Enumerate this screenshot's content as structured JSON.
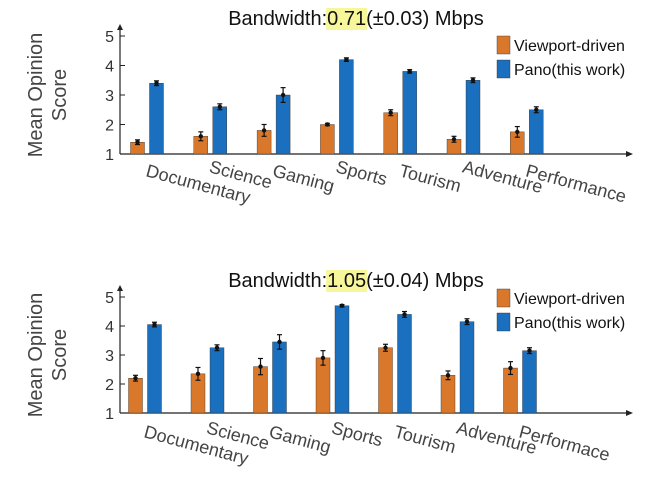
{
  "colors": {
    "viewport": "#d9772b",
    "pano": "#1a6fbf",
    "highlight": "#f7f69a",
    "axis": "#222222",
    "errorbar": "#111111"
  },
  "chart_data": [
    {
      "type": "bar",
      "title_prefix": "Bandwidth:",
      "title_highlight": "0.71",
      "title_suffix": "(±0.03) Mbps",
      "ylabel_line1": "Mean Opinion",
      "ylabel_line2": "Score",
      "ylim": [
        1,
        5
      ],
      "yticks": [
        "1",
        "2",
        "3",
        "4",
        "5"
      ],
      "categories": [
        "Documentary",
        "Science",
        "Gaming",
        "Sports",
        "Tourism",
        "Adventure",
        "Performance"
      ],
      "series": [
        {
          "name": "Viewport-driven",
          "values": [
            1.4,
            1.6,
            1.8,
            2.0,
            2.4,
            1.5,
            1.75
          ],
          "errors": [
            0.08,
            0.15,
            0.2,
            0.04,
            0.1,
            0.1,
            0.18
          ]
        },
        {
          "name": "Pano(this work)",
          "values": [
            3.4,
            2.6,
            3.0,
            4.2,
            3.8,
            3.5,
            2.5
          ],
          "errors": [
            0.08,
            0.1,
            0.25,
            0.06,
            0.06,
            0.08,
            0.1
          ]
        }
      ],
      "legend": "top-right",
      "grid": false
    },
    {
      "type": "bar",
      "title_prefix": "Bandwidth:",
      "title_highlight": "1.05",
      "title_suffix": "(±0.04) Mbps",
      "ylabel_line1": "Mean Opinion",
      "ylabel_line2": "Score",
      "ylim": [
        1,
        5
      ],
      "yticks": [
        "1",
        "2",
        "3",
        "4",
        "5"
      ],
      "categories": [
        "Documentary",
        "Science",
        "Gaming",
        "Sports",
        "Tourism",
        "Adventure",
        "Performace"
      ],
      "series": [
        {
          "name": "Viewport-driven",
          "values": [
            2.2,
            2.35,
            2.6,
            2.9,
            3.25,
            2.3,
            2.55
          ],
          "errors": [
            0.1,
            0.22,
            0.28,
            0.25,
            0.12,
            0.15,
            0.22
          ]
        },
        {
          "name": "Pano(this work)",
          "values": [
            4.05,
            3.25,
            3.45,
            4.7,
            4.4,
            4.15,
            3.15
          ],
          "errors": [
            0.08,
            0.1,
            0.25,
            0.04,
            0.1,
            0.1,
            0.1
          ]
        }
      ],
      "legend": "top-right",
      "grid": false
    }
  ]
}
